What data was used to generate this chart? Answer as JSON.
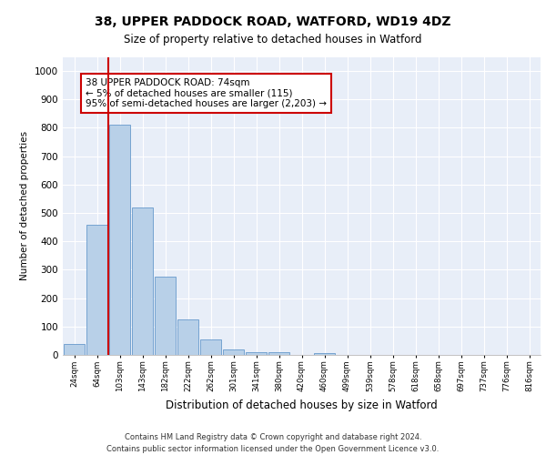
{
  "title1": "38, UPPER PADDOCK ROAD, WATFORD, WD19 4DZ",
  "title2": "Size of property relative to detached houses in Watford",
  "xlabel": "Distribution of detached houses by size in Watford",
  "ylabel": "Number of detached properties",
  "categories": [
    "24sqm",
    "64sqm",
    "103sqm",
    "143sqm",
    "182sqm",
    "222sqm",
    "262sqm",
    "301sqm",
    "341sqm",
    "380sqm",
    "420sqm",
    "460sqm",
    "499sqm",
    "539sqm",
    "578sqm",
    "618sqm",
    "658sqm",
    "697sqm",
    "737sqm",
    "776sqm",
    "816sqm"
  ],
  "bar_heights": [
    40,
    460,
    810,
    520,
    275,
    125,
    55,
    20,
    10,
    10,
    0,
    8,
    0,
    0,
    0,
    0,
    0,
    0,
    0,
    0,
    0
  ],
  "bar_color": "#b8d0e8",
  "bar_edge_color": "#6699cc",
  "background_color": "#e8eef8",
  "grid_color": "#ffffff",
  "red_line_x": 1.48,
  "annotation_box_text": "38 UPPER PADDOCK ROAD: 74sqm\n← 5% of detached houses are smaller (115)\n95% of semi-detached houses are larger (2,203) →",
  "annotation_box_color": "#cc0000",
  "ylim": [
    0,
    1050
  ],
  "yticks": [
    0,
    100,
    200,
    300,
    400,
    500,
    600,
    700,
    800,
    900,
    1000
  ],
  "footnote1": "Contains HM Land Registry data © Crown copyright and database right 2024.",
  "footnote2": "Contains public sector information licensed under the Open Government Licence v3.0."
}
